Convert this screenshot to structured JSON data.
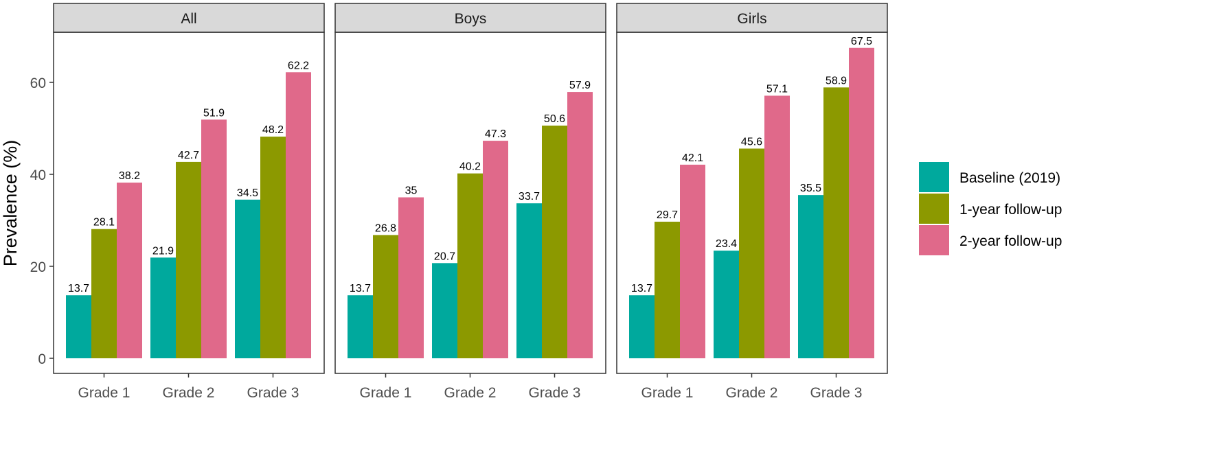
{
  "chart_data": {
    "type": "bar",
    "ylabel": "Prevalence (%)",
    "xlabel": "",
    "ylim": [
      0,
      70
    ],
    "yticks": [
      0,
      20,
      40,
      60
    ],
    "categories": [
      "Grade 1",
      "Grade 2",
      "Grade 3"
    ],
    "legend": {
      "placement": "right",
      "entries": [
        {
          "name": "Baseline (2019)",
          "color": "#00A99D"
        },
        {
          "name": "1-year follow-up",
          "color": "#8C9900"
        },
        {
          "name": "2-year follow-up",
          "color": "#E0698A"
        }
      ]
    },
    "panels": [
      {
        "title": "All",
        "series": [
          {
            "name": "Baseline (2019)",
            "values": [
              13.7,
              21.9,
              34.5
            ]
          },
          {
            "name": "1-year follow-up",
            "values": [
              28.1,
              42.7,
              48.2
            ]
          },
          {
            "name": "2-year follow-up",
            "values": [
              38.2,
              51.9,
              62.2
            ]
          }
        ]
      },
      {
        "title": "Boys",
        "series": [
          {
            "name": "Baseline (2019)",
            "values": [
              13.7,
              20.7,
              33.7
            ]
          },
          {
            "name": "1-year follow-up",
            "values": [
              26.8,
              40.2,
              50.6
            ]
          },
          {
            "name": "2-year follow-up",
            "values": [
              35,
              47.3,
              57.9
            ]
          }
        ]
      },
      {
        "title": "Girls",
        "series": [
          {
            "name": "Baseline (2019)",
            "values": [
              13.7,
              23.4,
              35.5
            ]
          },
          {
            "name": "1-year follow-up",
            "values": [
              29.7,
              45.6,
              58.9
            ]
          },
          {
            "name": "2-year follow-up",
            "values": [
              42.1,
              57.1,
              67.5
            ]
          }
        ]
      }
    ],
    "data_labels": true,
    "grid": false
  }
}
